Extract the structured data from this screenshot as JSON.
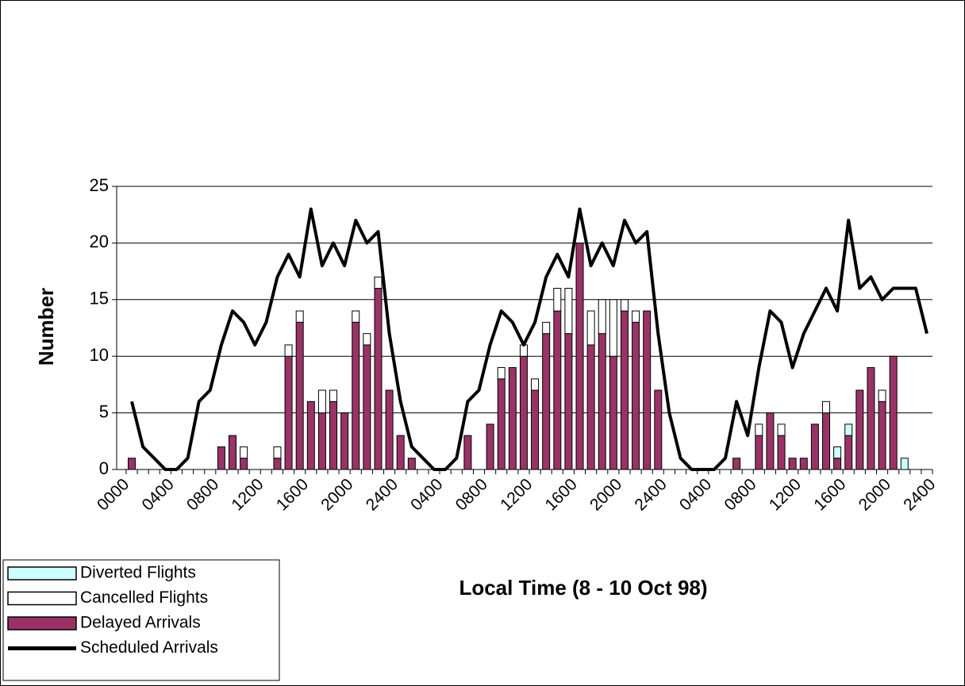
{
  "chart_data": {
    "type": "bar-line",
    "x_label": "Local Time (8 - 10 Oct 98)",
    "y_label": "Number",
    "categories": [
      "0000",
      null,
      null,
      null,
      "0400",
      null,
      null,
      null,
      "0800",
      null,
      null,
      null,
      "1200",
      null,
      null,
      null,
      "1600",
      null,
      null,
      null,
      "2000",
      null,
      null,
      null,
      "2400",
      null,
      null,
      null,
      "0400",
      null,
      null,
      null,
      "0800",
      null,
      null,
      null,
      "1200",
      null,
      null,
      null,
      "1600",
      null,
      null,
      null,
      "2000",
      null,
      null,
      null,
      "2400",
      null,
      null,
      null,
      "0400",
      null,
      null,
      null,
      "0800",
      null,
      null,
      null,
      "1200",
      null,
      null,
      null,
      "1600",
      null,
      null,
      null,
      "2000",
      null,
      null,
      null,
      "2400"
    ],
    "series": [
      {
        "name": "Delayed Arrivals",
        "color": "#993366",
        "kind": "bar",
        "values": [
          null,
          1,
          0,
          0,
          0,
          0,
          0,
          0,
          0,
          2,
          3,
          1,
          0,
          0,
          1,
          10,
          13,
          6,
          5,
          6,
          5,
          13,
          11,
          16,
          7,
          3,
          1,
          0,
          0,
          0,
          0,
          3,
          0,
          4,
          8,
          9,
          10,
          7,
          12,
          14,
          12,
          20,
          11,
          12,
          10,
          14,
          13,
          14,
          7,
          0,
          0,
          0,
          0,
          0,
          0,
          1,
          0,
          3,
          5,
          3,
          1,
          1,
          4,
          5,
          1,
          3,
          7,
          9,
          6,
          10,
          0,
          0,
          0
        ]
      },
      {
        "name": "Cancelled Flights",
        "color": "#ffffff",
        "kind": "bar",
        "values": [
          null,
          0,
          0,
          0,
          0,
          0,
          0,
          0,
          0,
          0,
          0,
          1,
          0,
          0,
          1,
          1,
          1,
          0,
          2,
          1,
          0,
          1,
          1,
          1,
          0,
          0,
          0,
          0,
          0,
          0,
          0,
          0,
          0,
          0,
          1,
          0,
          1,
          1,
          1,
          2,
          4,
          0,
          3,
          3,
          5,
          1,
          1,
          0,
          0,
          0,
          0,
          0,
          0,
          0,
          0,
          0,
          0,
          1,
          0,
          1,
          0,
          0,
          0,
          1,
          0,
          0,
          0,
          0,
          1,
          0,
          0,
          0,
          0
        ]
      },
      {
        "name": "Diverted Flights",
        "color": "#ccffff",
        "kind": "bar",
        "values": [
          null,
          0,
          0,
          0,
          0,
          0,
          0,
          0,
          0,
          0,
          0,
          0,
          0,
          0,
          0,
          0,
          0,
          0,
          0,
          0,
          0,
          0,
          0,
          0,
          0,
          0,
          0,
          0,
          0,
          0,
          0,
          0,
          0,
          0,
          0,
          0,
          0,
          0,
          0,
          0,
          0,
          0,
          0,
          0,
          0,
          0,
          0,
          0,
          0,
          0,
          0,
          0,
          0,
          0,
          0,
          0,
          0,
          0,
          0,
          0,
          0,
          0,
          0,
          0,
          1,
          1,
          0,
          0,
          0,
          0,
          1,
          0,
          0
        ]
      },
      {
        "name": "Scheduled Arrivals",
        "color": "#000000",
        "kind": "line",
        "values": [
          null,
          6,
          2,
          1,
          0,
          0,
          1,
          6,
          7,
          11,
          14,
          13,
          11,
          13,
          17,
          19,
          17,
          23,
          18,
          20,
          18,
          22,
          20,
          21,
          12,
          6,
          2,
          1,
          0,
          0,
          1,
          6,
          7,
          11,
          14,
          13,
          11,
          13,
          17,
          19,
          17,
          23,
          18,
          20,
          18,
          22,
          20,
          21,
          12,
          5,
          1,
          0,
          0,
          0,
          1,
          6,
          3,
          9,
          14,
          13,
          9,
          12,
          14,
          16,
          14,
          22,
          16,
          17,
          15,
          16,
          16,
          16,
          12
        ]
      }
    ],
    "ylim": [
      0,
      25
    ],
    "yticks": [
      0,
      5,
      10,
      15,
      20,
      25
    ],
    "grid": true,
    "legend": "lower left"
  }
}
